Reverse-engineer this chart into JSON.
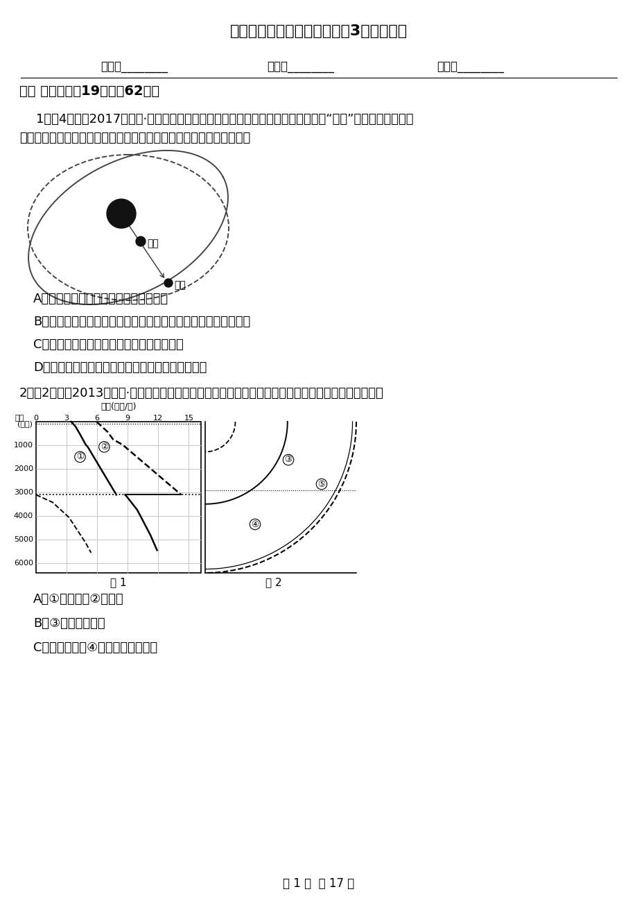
{
  "title": "江苏省南通市高一下学期地理3月月考试卷",
  "bg_color": "#ffffff",
  "text_color": "#000000",
  "name_line": "姓名：________",
  "class_line": "班级：________",
  "score_line": "成绩：________",
  "section1": "一、 单选题（共19题；共62分）",
  "q1_text1": "1．（4分）（2017高二上·嘉兴月考）某一天体上看到行星如一颗小黑痣，从太阳“脸上”缓慢走过，这种现",
  "q1_text2": "象称为行星凌日。读行星凌日发生示意图，下列说法正确的是（　　）",
  "q1_A": "A．只有地内行星才能发生行星凌日现象",
  "q1_B": "B．当行星运行到太阳和观测天体之间时，不一定会发生行星凌日",
  "q1_C": "C．在地球上可以观察到金星凌日和火星凌日",
  "q1_D": "D．在地球上可以用肉眼直接观测到该行星凌日现象",
  "q2_text": "2．（2分）（2013高一上·台州期中）读地震波速度和地球构造示意图，判断下列说法正确的是（　　）",
  "q2_A": "A．①为纵波，②为横波",
  "q2_B": "B．③为古登堡界面",
  "q2_C": "C．地震波传到④界面时，横波消失",
  "footer": "第 1 页  共 17 页"
}
